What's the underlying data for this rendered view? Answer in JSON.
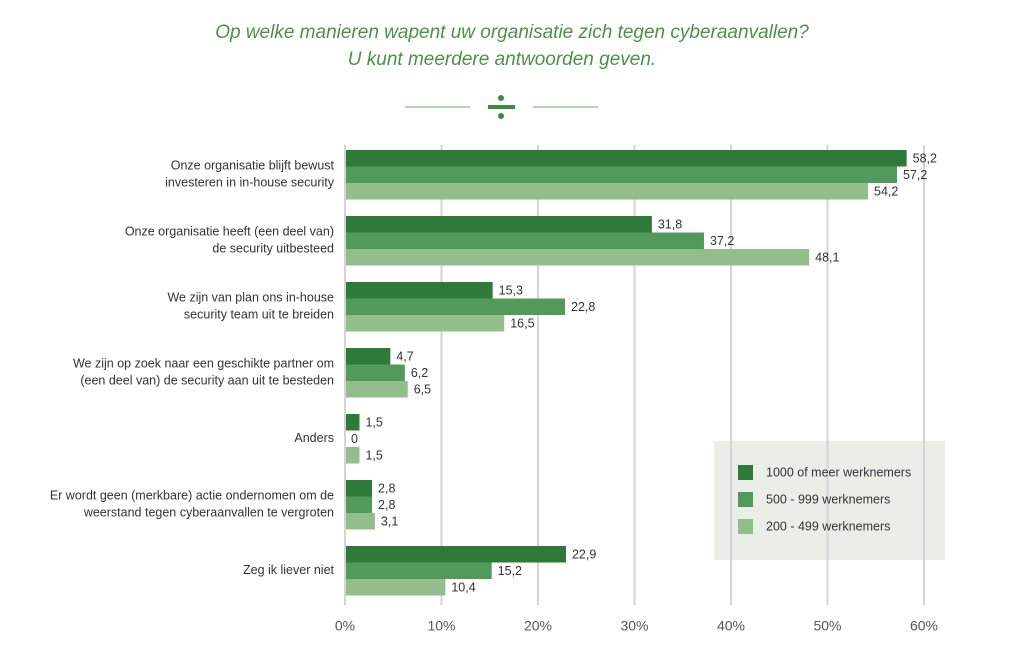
{
  "chart_data": {
    "type": "hbar",
    "title": [
      "Op welke manieren wapent uw organisatie zich tegen cyberaanvallen?",
      "U kunt meerdere antwoorden geven."
    ],
    "categories": [
      [
        "Onze organisatie blijft bewust",
        "investeren in in-house security"
      ],
      [
        "Onze organisatie heeft (een deel van)",
        "de security uitbesteed"
      ],
      [
        "We zijn van plan ons in-house",
        "security team uit te breiden"
      ],
      [
        "We zijn op zoek naar een geschikte partner om",
        "(een deel van) de security aan uit te besteden"
      ],
      [
        "Anders"
      ],
      [
        "Er wordt geen (merkbare) actie ondernomen om de",
        "weerstand tegen cyberaanvallen te vergroten"
      ],
      [
        "Zeg ik liever niet"
      ]
    ],
    "series": [
      {
        "name": "1000 of meer werknemers",
        "color": "#2e7a38",
        "values": [
          58.2,
          31.8,
          15.3,
          4.7,
          1.5,
          2.8,
          22.9
        ],
        "value_labels": [
          "58,2",
          "31,8",
          "15,3",
          "4,7",
          "1,5",
          "2,8",
          "22,9"
        ]
      },
      {
        "name": "500 - 999 werknemers",
        "color": "#52995c",
        "values": [
          57.2,
          37.2,
          22.8,
          6.2,
          0,
          2.8,
          15.2
        ],
        "value_labels": [
          "57,2",
          "37,2",
          "22,8",
          "6,2",
          "0",
          "2,8",
          "15,2"
        ]
      },
      {
        "name": "200 - 499 werknemers",
        "color": "#94bd8e",
        "values": [
          54.2,
          48.1,
          16.5,
          6.5,
          1.5,
          3.1,
          10.4
        ],
        "value_labels": [
          "54,2",
          "48,1",
          "16,5",
          "6,5",
          "1,5",
          "3,1",
          "10,4"
        ]
      }
    ],
    "xlim": [
      0,
      60
    ],
    "xticks": [
      {
        "value": 0,
        "label": "0%"
      },
      {
        "value": 10,
        "label": "10%"
      },
      {
        "value": 20,
        "label": "20%"
      },
      {
        "value": 30,
        "label": "30%"
      },
      {
        "value": 40,
        "label": "40%"
      },
      {
        "value": 50,
        "label": "50%"
      },
      {
        "value": 60,
        "label": "60%"
      }
    ],
    "grid": true
  }
}
